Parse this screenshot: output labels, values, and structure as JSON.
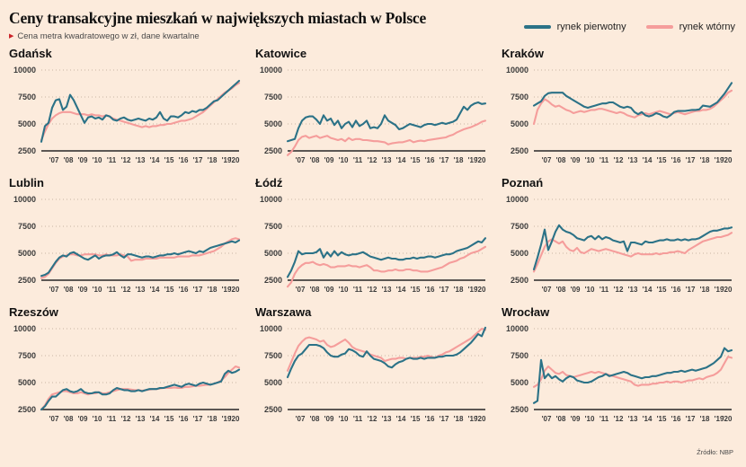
{
  "header": {
    "title": "Ceny transakcyjne mieszkań w największych miastach w Polsce",
    "bullet": "▶",
    "subtitle": "Cena metra kwadratowego w zł, dane kwartalne"
  },
  "footer": {
    "source": "Źródło: NBP"
  },
  "colors": {
    "background": "#fcebdc",
    "primary_market": "#2b7287",
    "secondary_market": "#f59d9b",
    "bullet_red": "#cb2228",
    "gridline": "#c8b5a3"
  },
  "chart_data": {
    "type": "line",
    "unit": "zł / m2",
    "frequency": "quarterly",
    "x_start": "2006 Q3",
    "x_tick_labels": [
      "'07",
      "'08",
      "'09",
      "'10",
      "'11",
      "'12",
      "'13",
      "'14",
      "'15",
      "'16",
      "'17",
      "'18",
      "'19",
      "'20"
    ],
    "ylim": [
      2500,
      10000
    ],
    "y_ticks": [
      2500,
      5000,
      7500,
      10000
    ],
    "grid": "dotted horizontal",
    "legend_position": "top-right",
    "series_defs": [
      {
        "key": "pierwotny",
        "label": "rynek pierwotny",
        "color": "#2b7287"
      },
      {
        "key": "wtorny",
        "label": "rynek wtórny",
        "color": "#f59d9b"
      }
    ],
    "cities": [
      {
        "name": "Gdańsk",
        "id": "gdansk",
        "pierwotny": [
          3350,
          4800,
          5100,
          6500,
          7200,
          7300,
          6300,
          6600,
          7700,
          7200,
          6500,
          5800,
          5100,
          5600,
          5700,
          5500,
          5600,
          5400,
          5800,
          5700,
          5400,
          5300,
          5500,
          5600,
          5400,
          5300,
          5400,
          5500,
          5400,
          5300,
          5500,
          5400,
          5600,
          6100,
          5500,
          5300,
          5700,
          5700,
          5600,
          5800,
          6100,
          6000,
          6200,
          6100,
          6300,
          6300,
          6500,
          6800,
          7100,
          7200,
          7500,
          7800,
          8100,
          8400,
          8700,
          9000
        ],
        "wtorny": [
          3500,
          4300,
          5000,
          5500,
          5800,
          6000,
          6100,
          6100,
          6100,
          6000,
          5900,
          5900,
          5900,
          5800,
          5900,
          5800,
          5800,
          5700,
          5800,
          5700,
          5500,
          5400,
          5300,
          5200,
          5100,
          5000,
          4900,
          4800,
          4700,
          4800,
          4700,
          4800,
          4800,
          4900,
          4900,
          5000,
          5000,
          5100,
          5200,
          5300,
          5300,
          5400,
          5500,
          5700,
          5900,
          6100,
          6400,
          6700,
          7000,
          7300,
          7600,
          7900,
          8100,
          8300,
          8600,
          8800
        ]
      },
      {
        "name": "Katowice",
        "id": "katowice",
        "pierwotny": [
          3400,
          3500,
          3600,
          4600,
          5300,
          5600,
          5700,
          5700,
          5400,
          5000,
          5800,
          5300,
          5500,
          4900,
          5300,
          4600,
          5000,
          5200,
          4700,
          5300,
          4800,
          5000,
          5300,
          4600,
          4700,
          4600,
          5000,
          5800,
          5300,
          5100,
          4900,
          4500,
          4600,
          4800,
          5000,
          4900,
          4800,
          4700,
          4900,
          5000,
          5000,
          4900,
          5000,
          5100,
          5000,
          5100,
          5200,
          5400,
          6000,
          6600,
          6300,
          6700,
          6900,
          7000,
          6850,
          6900
        ],
        "wtorny": [
          2100,
          2400,
          2900,
          3500,
          3800,
          3900,
          3700,
          3800,
          3900,
          3700,
          3800,
          3900,
          3700,
          3600,
          3500,
          3600,
          3400,
          3700,
          3500,
          3600,
          3600,
          3500,
          3500,
          3450,
          3400,
          3400,
          3350,
          3300,
          3100,
          3200,
          3250,
          3300,
          3300,
          3400,
          3500,
          3300,
          3400,
          3450,
          3400,
          3500,
          3550,
          3600,
          3650,
          3700,
          3750,
          3900,
          4000,
          4200,
          4350,
          4500,
          4600,
          4700,
          4850,
          5000,
          5200,
          5300
        ]
      },
      {
        "name": "Kraków",
        "id": "krakow",
        "pierwotny": [
          6700,
          6900,
          7100,
          7600,
          7850,
          7900,
          7900,
          7900,
          7900,
          7600,
          7400,
          7200,
          7000,
          6800,
          6600,
          6500,
          6600,
          6700,
          6800,
          6900,
          6900,
          7000,
          7000,
          6800,
          6600,
          6500,
          6600,
          6500,
          6100,
          5900,
          6100,
          5800,
          5700,
          5800,
          6000,
          5900,
          5700,
          5600,
          5800,
          6100,
          6200,
          6200,
          6200,
          6250,
          6300,
          6300,
          6350,
          6700,
          6650,
          6600,
          6800,
          7000,
          7400,
          7800,
          8300,
          8800
        ],
        "wtorny": [
          5000,
          6300,
          6900,
          7300,
          7100,
          6800,
          6600,
          6700,
          6500,
          6300,
          6200,
          6000,
          6100,
          6200,
          6100,
          6200,
          6300,
          6300,
          6400,
          6400,
          6300,
          6200,
          6100,
          6000,
          6100,
          6000,
          5800,
          5700,
          5600,
          5800,
          5900,
          6000,
          5900,
          6000,
          6100,
          6200,
          6100,
          6000,
          5900,
          6000,
          6100,
          6000,
          5900,
          6000,
          6100,
          6200,
          6200,
          6300,
          6300,
          6400,
          6600,
          6900,
          7200,
          7500,
          7900,
          8100
        ]
      },
      {
        "name": "Lublin",
        "id": "lublin",
        "pierwotny": [
          2900,
          3000,
          3200,
          3700,
          4200,
          4600,
          4800,
          4700,
          5000,
          5100,
          4900,
          4700,
          4500,
          4400,
          4600,
          4800,
          4500,
          4700,
          4800,
          4800,
          4900,
          5100,
          4800,
          4600,
          4900,
          4900,
          4800,
          4700,
          4600,
          4700,
          4700,
          4600,
          4700,
          4800,
          4800,
          4900,
          4900,
          5000,
          4900,
          5000,
          5100,
          5200,
          5100,
          5000,
          5200,
          5100,
          5300,
          5500,
          5600,
          5700,
          5800,
          5900,
          6000,
          6100,
          6000,
          6200
        ],
        "wtorny": [
          2700,
          2800,
          3100,
          3600,
          4100,
          4500,
          4700,
          4800,
          4900,
          4900,
          4800,
          4800,
          4900,
          4900,
          4900,
          4900,
          4800,
          4800,
          4900,
          4800,
          4800,
          4800,
          4900,
          4800,
          4700,
          4300,
          4400,
          4400,
          4400,
          4500,
          4500,
          4500,
          4500,
          4600,
          4600,
          4600,
          4600,
          4600,
          4700,
          4700,
          4700,
          4700,
          4800,
          4800,
          4800,
          4900,
          5000,
          5100,
          5200,
          5400,
          5600,
          5900,
          6100,
          6300,
          6400,
          6300
        ]
      },
      {
        "name": "Łódź",
        "id": "lodz",
        "pierwotny": [
          2800,
          3400,
          4200,
          5200,
          4900,
          5000,
          5000,
          5000,
          5100,
          5400,
          4600,
          5100,
          4700,
          5200,
          4800,
          5100,
          4900,
          4800,
          4900,
          4900,
          5000,
          5100,
          4900,
          4700,
          4600,
          4500,
          4400,
          4500,
          4600,
          4500,
          4500,
          4400,
          4400,
          4500,
          4500,
          4600,
          4500,
          4600,
          4600,
          4700,
          4700,
          4600,
          4700,
          4800,
          4900,
          4900,
          5000,
          5200,
          5300,
          5400,
          5500,
          5700,
          5900,
          6100,
          6000,
          6400
        ],
        "wtorny": [
          1900,
          2300,
          3100,
          3600,
          3900,
          4100,
          4100,
          4200,
          4000,
          3900,
          4000,
          3900,
          3700,
          3700,
          3800,
          3800,
          3800,
          3900,
          3800,
          3800,
          3700,
          3800,
          3900,
          3700,
          3400,
          3400,
          3300,
          3300,
          3400,
          3400,
          3500,
          3400,
          3400,
          3500,
          3500,
          3400,
          3400,
          3300,
          3300,
          3300,
          3400,
          3500,
          3600,
          3700,
          3900,
          4100,
          4200,
          4300,
          4500,
          4600,
          4800,
          5000,
          5100,
          5200,
          5400,
          5600
        ]
      },
      {
        "name": "Poznań",
        "id": "poznan",
        "pierwotny": [
          3500,
          4600,
          5800,
          7200,
          5300,
          6100,
          7000,
          7600,
          7200,
          7000,
          6900,
          6700,
          6400,
          6300,
          6200,
          6500,
          6600,
          6300,
          6600,
          6300,
          6500,
          6400,
          6200,
          6100,
          6000,
          6100,
          5200,
          6000,
          6000,
          5900,
          5800,
          6100,
          6000,
          6000,
          6100,
          6200,
          6200,
          6300,
          6200,
          6200,
          6300,
          6200,
          6300,
          6200,
          6300,
          6300,
          6400,
          6600,
          6800,
          7000,
          7100,
          7100,
          7200,
          7300,
          7300,
          7400
        ],
        "wtorny": [
          3300,
          4000,
          4800,
          5600,
          6100,
          6300,
          6100,
          5900,
          6100,
          5600,
          5300,
          5200,
          5500,
          5100,
          5000,
          5200,
          5400,
          5300,
          5200,
          5300,
          5400,
          5300,
          5200,
          5100,
          5000,
          4900,
          4800,
          4700,
          4900,
          5000,
          4900,
          4900,
          4900,
          4900,
          5000,
          4900,
          5000,
          5000,
          5100,
          5100,
          5200,
          5100,
          5000,
          5300,
          5500,
          5700,
          5900,
          6100,
          6200,
          6300,
          6400,
          6500,
          6500,
          6600,
          6700,
          6900
        ]
      },
      {
        "name": "Rzeszów",
        "id": "rzeszow",
        "pierwotny": [
          2500,
          2800,
          3300,
          3700,
          3700,
          4000,
          4300,
          4400,
          4200,
          4100,
          4200,
          4400,
          4100,
          4000,
          4000,
          4100,
          4100,
          3900,
          3900,
          4000,
          4300,
          4500,
          4400,
          4300,
          4300,
          4200,
          4200,
          4300,
          4200,
          4300,
          4400,
          4400,
          4400,
          4500,
          4500,
          4600,
          4700,
          4800,
          4700,
          4600,
          4800,
          4900,
          4800,
          4700,
          4900,
          5000,
          4900,
          4800,
          4900,
          5000,
          5100,
          5800,
          6100,
          5900,
          6000,
          6200
        ],
        "wtorny": [
          2500,
          2900,
          3500,
          3900,
          4000,
          4100,
          4200,
          4200,
          4100,
          4000,
          4000,
          4100,
          4000,
          3900,
          4000,
          4000,
          4100,
          4000,
          4000,
          4100,
          4200,
          4300,
          4400,
          4400,
          4400,
          4350,
          4300,
          4300,
          4250,
          4300,
          4350,
          4400,
          4400,
          4450,
          4500,
          4500,
          4500,
          4550,
          4500,
          4500,
          4600,
          4600,
          4650,
          4700,
          4700,
          4750,
          4800,
          4800,
          4900,
          5000,
          5200,
          5500,
          5900,
          6200,
          6500,
          6400
        ]
      },
      {
        "name": "Warszawa",
        "id": "warszawa",
        "pierwotny": [
          5500,
          6300,
          7000,
          7500,
          7700,
          8100,
          8500,
          8500,
          8500,
          8400,
          8200,
          7800,
          7500,
          7400,
          7400,
          7600,
          7700,
          8100,
          8000,
          7800,
          7500,
          7400,
          7900,
          7500,
          7200,
          7100,
          7000,
          6800,
          6500,
          6400,
          6700,
          6900,
          7000,
          7200,
          7300,
          7200,
          7200,
          7300,
          7200,
          7300,
          7300,
          7300,
          7400,
          7400,
          7500,
          7500,
          7500,
          7600,
          7800,
          8100,
          8400,
          8700,
          9100,
          9500,
          9300,
          10100
        ],
        "wtorny": [
          6100,
          6900,
          7700,
          8400,
          8800,
          9100,
          9200,
          9100,
          9000,
          8800,
          8900,
          8500,
          8300,
          8400,
          8600,
          8800,
          9000,
          8700,
          8300,
          8100,
          8000,
          7900,
          7800,
          7600,
          7500,
          7400,
          7300,
          7000,
          7100,
          7200,
          7200,
          7300,
          7300,
          7200,
          7300,
          7300,
          7300,
          7400,
          7400,
          7500,
          7400,
          7300,
          7500,
          7600,
          7800,
          7900,
          8100,
          8300,
          8500,
          8700,
          8900,
          9100,
          9400,
          9700,
          10000,
          9900
        ]
      },
      {
        "name": "Wrocław",
        "id": "wroclaw",
        "pierwotny": [
          3100,
          3300,
          7100,
          5400,
          5800,
          5400,
          5600,
          5300,
          5100,
          5400,
          5600,
          5500,
          5200,
          5100,
          5000,
          5000,
          5100,
          5300,
          5500,
          5600,
          5800,
          5600,
          5700,
          5800,
          5900,
          6000,
          5900,
          5700,
          5600,
          5500,
          5400,
          5500,
          5500,
          5600,
          5600,
          5700,
          5800,
          5900,
          5900,
          6000,
          6000,
          6100,
          6000,
          6100,
          6200,
          6100,
          6200,
          6300,
          6400,
          6600,
          6800,
          7100,
          7400,
          8200,
          7900,
          8000
        ],
        "wtorny": [
          4600,
          4800,
          5300,
          6100,
          6500,
          6200,
          5900,
          5800,
          6000,
          5700,
          5600,
          5500,
          5600,
          5700,
          5800,
          5900,
          6000,
          5900,
          6000,
          5900,
          5800,
          5700,
          5600,
          5500,
          5400,
          5300,
          5200,
          5100,
          4800,
          4700,
          4800,
          4800,
          4800,
          4900,
          4900,
          5000,
          5000,
          5100,
          5000,
          5100,
          5100,
          5000,
          5100,
          5200,
          5200,
          5300,
          5400,
          5300,
          5500,
          5600,
          5700,
          5900,
          6200,
          6800,
          7400,
          7300
        ]
      }
    ]
  }
}
